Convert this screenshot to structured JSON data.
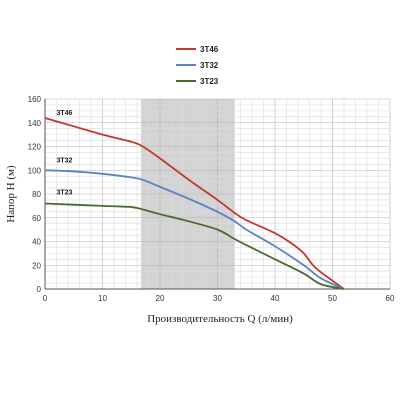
{
  "chart_data": {
    "type": "line",
    "xlabel": "Производительность Q (л/мин)",
    "ylabel": "Напор H (м)",
    "xlim": [
      0,
      60
    ],
    "ylim": [
      0,
      160
    ],
    "x_ticks": [
      "0",
      "10",
      "20",
      "30",
      "40",
      "50",
      "60"
    ],
    "y_ticks": [
      "0",
      "20",
      "40",
      "60",
      "80",
      "100",
      "120",
      "140",
      "160"
    ],
    "grid": true,
    "highlight_band": {
      "x_from": 16.7,
      "x_to": 33
    },
    "legend_position": "top-center",
    "series": [
      {
        "name": "3T46",
        "color": "#c0392b",
        "points": [
          [
            0,
            144
          ],
          [
            5,
            137
          ],
          [
            10,
            130
          ],
          [
            15,
            124
          ],
          [
            17,
            120
          ],
          [
            20,
            110
          ],
          [
            25,
            92
          ],
          [
            30,
            75
          ],
          [
            33,
            64
          ],
          [
            35,
            58
          ],
          [
            40,
            47
          ],
          [
            43,
            38
          ],
          [
            45,
            30
          ],
          [
            47,
            18
          ],
          [
            50,
            7
          ],
          [
            52,
            0
          ]
        ]
      },
      {
        "name": "3T32",
        "color": "#5b84c4",
        "points": [
          [
            0,
            100
          ],
          [
            5,
            99
          ],
          [
            10,
            97
          ],
          [
            15,
            94
          ],
          [
            17,
            92
          ],
          [
            20,
            86
          ],
          [
            25,
            76
          ],
          [
            30,
            65
          ],
          [
            33,
            57
          ],
          [
            35,
            50
          ],
          [
            40,
            36
          ],
          [
            45,
            20
          ],
          [
            48,
            9
          ],
          [
            52,
            0
          ]
        ]
      },
      {
        "name": "3T23",
        "color": "#4a6b2e",
        "points": [
          [
            0,
            72
          ],
          [
            5,
            71
          ],
          [
            10,
            70
          ],
          [
            15,
            69
          ],
          [
            17,
            67
          ],
          [
            20,
            63
          ],
          [
            25,
            57
          ],
          [
            30,
            50
          ],
          [
            33,
            42
          ],
          [
            35,
            37
          ],
          [
            40,
            25
          ],
          [
            45,
            13
          ],
          [
            48,
            4
          ],
          [
            52,
            0
          ]
        ]
      }
    ]
  }
}
